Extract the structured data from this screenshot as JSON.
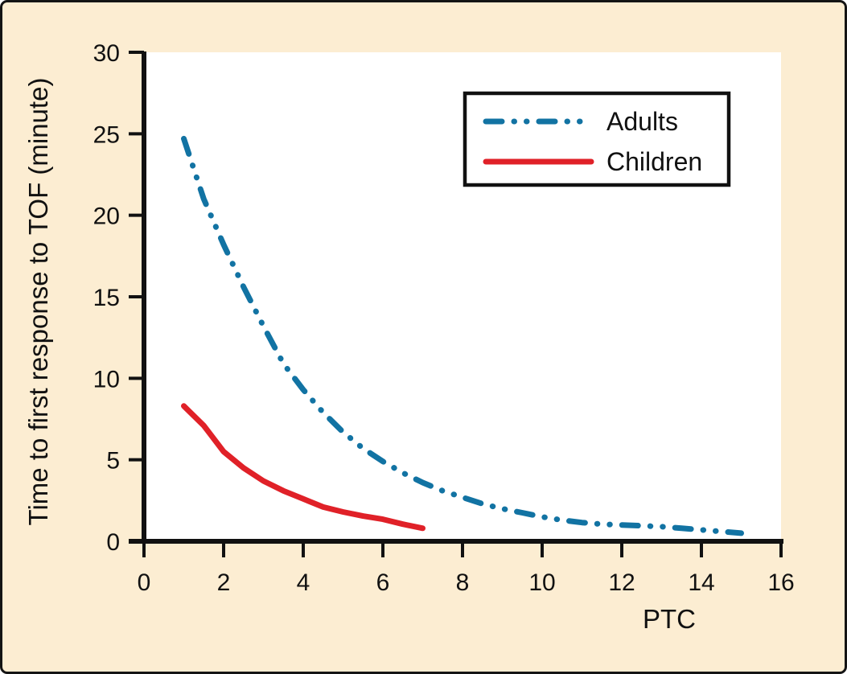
{
  "figure": {
    "background_color": "#fcedd2",
    "plot_background": "#ffffff",
    "border_color": "#141414",
    "axis_color": "#111111",
    "text_color": "#111111"
  },
  "chart_data": {
    "type": "line",
    "title": "",
    "xlabel": "PTC",
    "ylabel": "Time to first response to TOF (minute)",
    "xlim": [
      0,
      16
    ],
    "ylim": [
      0,
      30
    ],
    "x_ticks": [
      0,
      2,
      4,
      6,
      8,
      10,
      12,
      14,
      16
    ],
    "y_ticks": [
      0,
      5,
      10,
      15,
      20,
      25,
      30
    ],
    "grid": false,
    "legend_position": "upper-right-inside",
    "series": [
      {
        "name": "Adults",
        "color": "#1273a3",
        "line_style": "dash-dot-dot",
        "x": [
          1,
          1.5,
          2,
          2.5,
          3,
          3.5,
          4,
          4.5,
          5,
          5.5,
          6,
          6.5,
          7,
          7.5,
          8,
          8.5,
          9,
          9.5,
          10,
          10.5,
          11,
          11.5,
          12,
          12.5,
          13,
          13.5,
          14,
          14.5,
          15
        ],
        "y": [
          24.7,
          21.0,
          18.2,
          15.6,
          13.2,
          10.9,
          9.3,
          7.9,
          6.7,
          5.7,
          4.9,
          4.2,
          3.6,
          3.1,
          2.7,
          2.3,
          2.0,
          1.75,
          1.5,
          1.3,
          1.15,
          1.05,
          1.0,
          0.95,
          0.9,
          0.8,
          0.7,
          0.6,
          0.5
        ]
      },
      {
        "name": "Children",
        "color": "#e02128",
        "line_style": "solid",
        "x": [
          1,
          1.5,
          2,
          2.5,
          3,
          3.5,
          4,
          4.5,
          5,
          5.5,
          6,
          6.5,
          7
        ],
        "y": [
          8.3,
          7.1,
          5.5,
          4.5,
          3.7,
          3.1,
          2.6,
          2.1,
          1.8,
          1.55,
          1.35,
          1.05,
          0.8
        ]
      }
    ]
  }
}
